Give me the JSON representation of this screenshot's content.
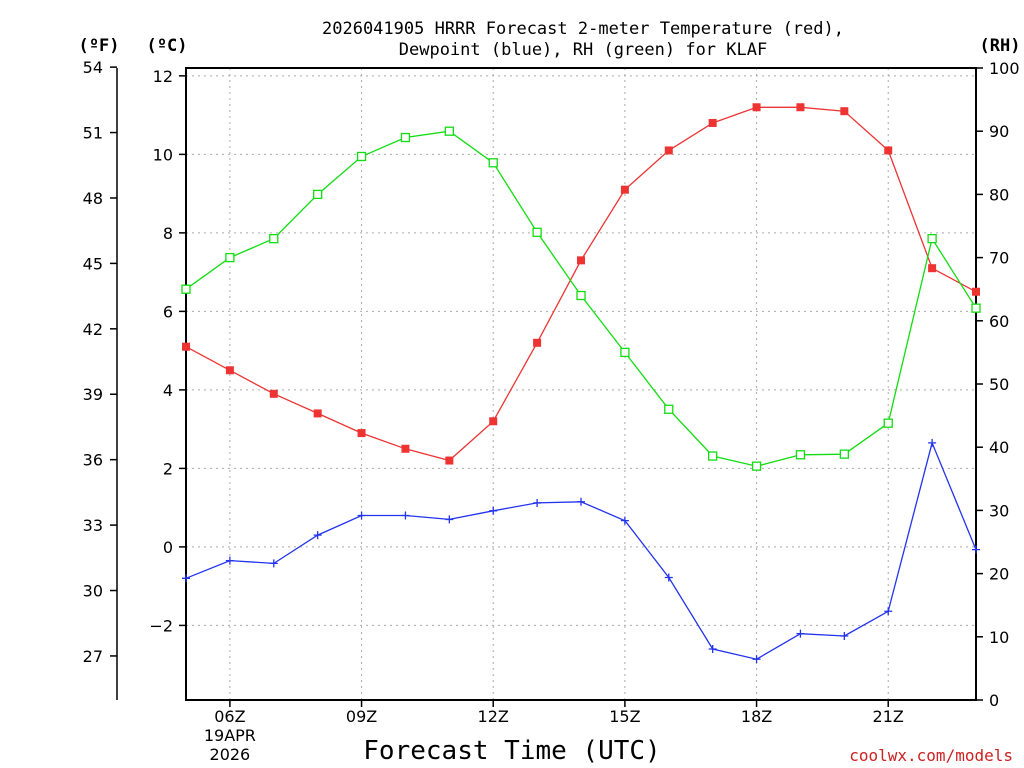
{
  "header": {
    "title_line1": "2026041905 HRRR Forecast 2-meter Temperature (red),",
    "title_line2": "Dewpoint (blue), RH (green) for KLAF"
  },
  "units": {
    "fahrenheit": "(ºF)",
    "celsius": "(ºC)",
    "rh": "(RH)"
  },
  "footer": {
    "credit": "coolwx.com/models"
  },
  "colors": {
    "temperature": "#ee3333",
    "dewpoint": "#2233ee",
    "rh": "#11dd11"
  },
  "chart_data": {
    "type": "line",
    "title": "2026041905 HRRR Forecast 2-meter Temperature (red), Dewpoint (blue), RH (green) for KLAF",
    "xlabel": "Forecast Time (UTC)",
    "x_hours": [
      5,
      6,
      7,
      8,
      9,
      10,
      11,
      12,
      13,
      14,
      15,
      16,
      17,
      18,
      19,
      20,
      21,
      22,
      23
    ],
    "xlim": [
      5,
      23
    ],
    "x_ticks": [
      {
        "hour": 6,
        "label": "06Z",
        "sub1": "19APR",
        "sub2": "2026"
      },
      {
        "hour": 9,
        "label": "09Z"
      },
      {
        "hour": 12,
        "label": "12Z"
      },
      {
        "hour": 15,
        "label": "15Z"
      },
      {
        "hour": 18,
        "label": "18Z"
      },
      {
        "hour": 21,
        "label": "21Z"
      }
    ],
    "ylim_c": [
      -3.9,
      12.2
    ],
    "y_ticks_c": [
      -2,
      0,
      2,
      4,
      6,
      8,
      10,
      12
    ],
    "y_ticks_f": [
      27,
      30,
      33,
      36,
      39,
      42,
      45,
      48,
      51,
      54
    ],
    "y_ticks_rh": [
      0,
      10,
      20,
      30,
      40,
      50,
      60,
      70,
      80,
      90,
      100
    ],
    "ylim_rh": [
      0,
      100
    ],
    "series": [
      {
        "name": "Temperature",
        "axis": "c",
        "marker": "filled-square",
        "values": [
          5.1,
          4.5,
          3.9,
          3.4,
          2.9,
          2.5,
          2.2,
          3.2,
          5.2,
          7.3,
          9.1,
          10.1,
          10.8,
          11.2,
          11.2,
          11.1,
          10.1,
          7.1,
          6.5
        ]
      },
      {
        "name": "Dewpoint",
        "axis": "c",
        "marker": "plus",
        "values": [
          -0.8,
          -0.35,
          -0.42,
          0.3,
          0.8,
          0.8,
          0.7,
          0.92,
          1.12,
          1.15,
          0.67,
          -0.78,
          -2.6,
          -2.86,
          -2.21,
          -2.27,
          -1.64,
          2.65,
          -0.07
        ]
      },
      {
        "name": "RH",
        "axis": "rh",
        "marker": "open-square",
        "values": [
          65,
          70,
          73,
          80,
          86,
          89,
          90,
          85,
          74,
          64,
          55,
          46,
          38.6,
          37,
          38.8,
          38.9,
          43.8,
          73,
          62
        ]
      }
    ]
  }
}
